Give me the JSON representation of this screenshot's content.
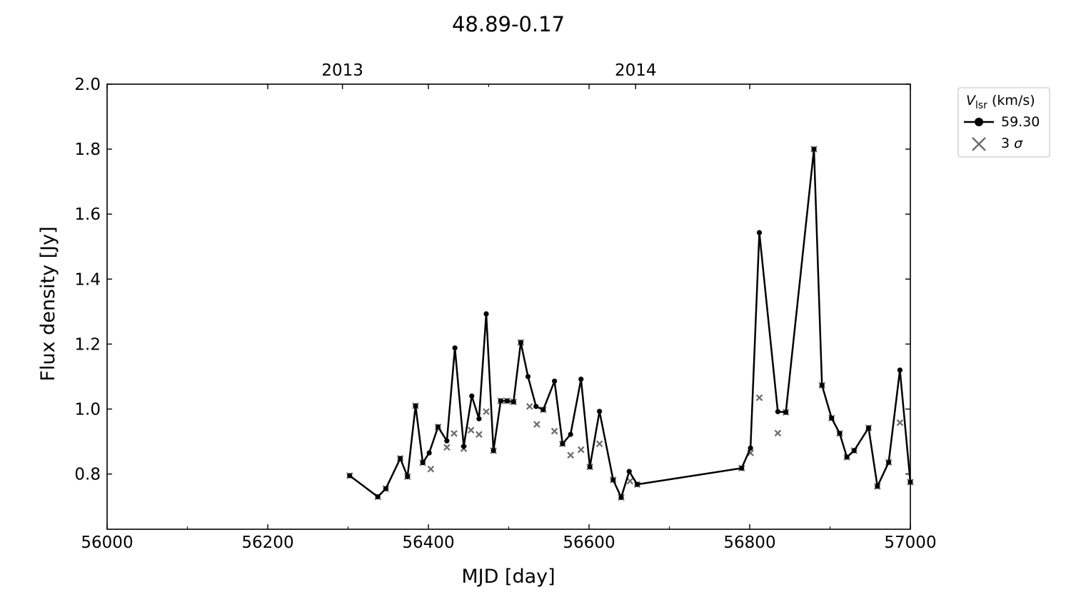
{
  "chart_data": {
    "type": "line",
    "title": "48.89-0.17",
    "xlabel": "MJD [day]",
    "ylabel": "Flux density [Jy]",
    "xlim": [
      56000,
      57000
    ],
    "ylim": [
      0.63,
      2.0
    ],
    "xticks": [
      56000,
      56200,
      56400,
      56600,
      56800,
      57000
    ],
    "xticks_minor": [
      56100,
      56300,
      56500,
      56700,
      56900
    ],
    "yticks": [
      0.8,
      1.0,
      1.2,
      1.4,
      1.6,
      1.8,
      2.0
    ],
    "yticks_labels": [
      "0.8",
      "1.0",
      "1.2",
      "1.4",
      "1.6",
      "1.8",
      "2.0"
    ],
    "top_axis": [
      {
        "label": "2013",
        "x": 56293
      },
      {
        "label": "2014",
        "x": 56658
      }
    ],
    "top_axis_minor": [
      56475
    ],
    "legend": {
      "title_main": "V",
      "title_sub": "lsr",
      "title_unit": " (km/s)",
      "position": "outside-top-right",
      "entries": [
        {
          "label": "59.30",
          "marker": "circle-line",
          "color": "#000000"
        },
        {
          "label": "3 ",
          "label_italic": "σ",
          "marker": "x",
          "color": "#6e6e6e"
        }
      ]
    },
    "series": [
      {
        "name": "59.30",
        "color": "#000000",
        "x": [
          56302,
          56337,
          56347,
          56365,
          56374,
          56384,
          56393,
          56401,
          56412,
          56423,
          56433,
          56444,
          56454,
          56463,
          56472,
          56481,
          56490,
          56498,
          56506,
          56515,
          56524,
          56534,
          56543,
          56557,
          56567,
          56577,
          56590,
          56601,
          56613,
          56630,
          56640,
          56650,
          56660,
          56790,
          56801,
          56812,
          56835,
          56845,
          56880,
          56890,
          56902,
          56912,
          56921,
          56930,
          56948,
          56959,
          56973,
          56987,
          57000
        ],
        "y": [
          0.795,
          0.73,
          0.755,
          0.848,
          0.792,
          1.01,
          0.835,
          0.865,
          0.945,
          0.902,
          1.188,
          0.885,
          1.04,
          0.97,
          1.293,
          0.872,
          1.025,
          1.025,
          1.022,
          1.205,
          1.1,
          1.008,
          0.998,
          1.086,
          0.893,
          0.922,
          1.092,
          0.822,
          0.993,
          0.782,
          0.728,
          0.808,
          0.768,
          0.818,
          0.88,
          1.543,
          0.992,
          0.99,
          1.8,
          1.073,
          0.972,
          0.925,
          0.852,
          0.872,
          0.942,
          0.762,
          0.836,
          1.12,
          0.775
        ]
      },
      {
        "name": "3 σ",
        "color": "#6e6e6e",
        "marker": "x",
        "x": [
          56302,
          56337,
          56347,
          56365,
          56374,
          56384,
          56393,
          56403,
          56412,
          56423,
          56432,
          56444,
          56453,
          56463,
          56472,
          56481,
          56490,
          56498,
          56506,
          56515,
          56526,
          56535,
          56543,
          56557,
          56567,
          56577,
          56590,
          56601,
          56613,
          56630,
          56640,
          56651,
          56660,
          56790,
          56801,
          56812,
          56835,
          56845,
          56880,
          56890,
          56902,
          56912,
          56921,
          56930,
          56948,
          56959,
          56973,
          56987,
          57000
        ],
        "y": [
          0.795,
          0.73,
          0.755,
          0.848,
          0.792,
          1.01,
          0.835,
          0.815,
          0.945,
          0.882,
          0.925,
          0.878,
          0.935,
          0.922,
          0.992,
          0.872,
          1.025,
          1.025,
          1.022,
          1.205,
          1.008,
          0.953,
          0.998,
          0.932,
          0.893,
          0.858,
          0.875,
          0.822,
          0.893,
          0.782,
          0.728,
          0.778,
          0.768,
          0.818,
          0.865,
          1.035,
          0.926,
          0.99,
          1.8,
          1.073,
          0.972,
          0.925,
          0.852,
          0.872,
          0.942,
          0.762,
          0.836,
          0.958,
          0.775
        ]
      }
    ]
  }
}
